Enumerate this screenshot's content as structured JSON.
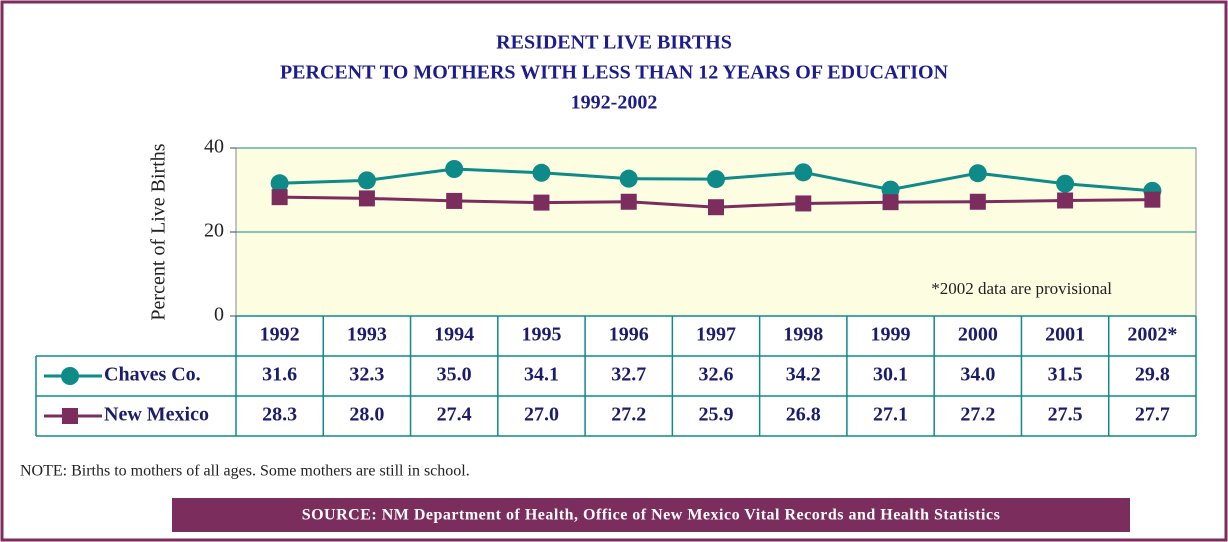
{
  "chart_data": {
    "type": "line",
    "title": [
      "RESIDENT LIVE BIRTHS",
      "PERCENT TO MOTHERS WITH LESS THAN 12 YEARS OF EDUCATION",
      "1992-2002"
    ],
    "y_label": "Percent of Live Births",
    "categories": [
      "1992",
      "1993",
      "1994",
      "1995",
      "1996",
      "1997",
      "1998",
      "1999",
      "2000",
      "2001",
      "2002*"
    ],
    "series": [
      {
        "name": "Chaves Co.",
        "color": "#0e8a88",
        "marker": "circle",
        "values": [
          31.6,
          32.3,
          35,
          34.1,
          32.7,
          32.6,
          34.2,
          30.1,
          34,
          31.5,
          29.8
        ],
        "value_labels": [
          "31.6",
          "32.3",
          "35.0",
          "34.1",
          "32.7",
          "32.6",
          "34.2",
          "30.1",
          "34.0",
          "31.5",
          "29.8"
        ]
      },
      {
        "name": "New Mexico",
        "color": "#7b2d5e",
        "marker": "square",
        "values": [
          28.3,
          28,
          27.4,
          27,
          27.2,
          25.9,
          26.8,
          27.1,
          27.2,
          27.5,
          27.7
        ],
        "value_labels": [
          "28.3",
          "28.0",
          "27.4",
          "27.0",
          "27.2",
          "25.9",
          "26.8",
          "27.1",
          "27.2",
          "27.5",
          "27.7"
        ]
      }
    ],
    "ylim": [
      0,
      40
    ],
    "yticks": [
      0,
      20,
      40
    ],
    "grid": true,
    "annotation": "*2002 data are provisional",
    "note": "NOTE:  Births to mothers of all ages.  Some mothers are still in school.",
    "source": "SOURCE: NM Department of Health, Office of New Mexico Vital Records and Health Statistics"
  }
}
